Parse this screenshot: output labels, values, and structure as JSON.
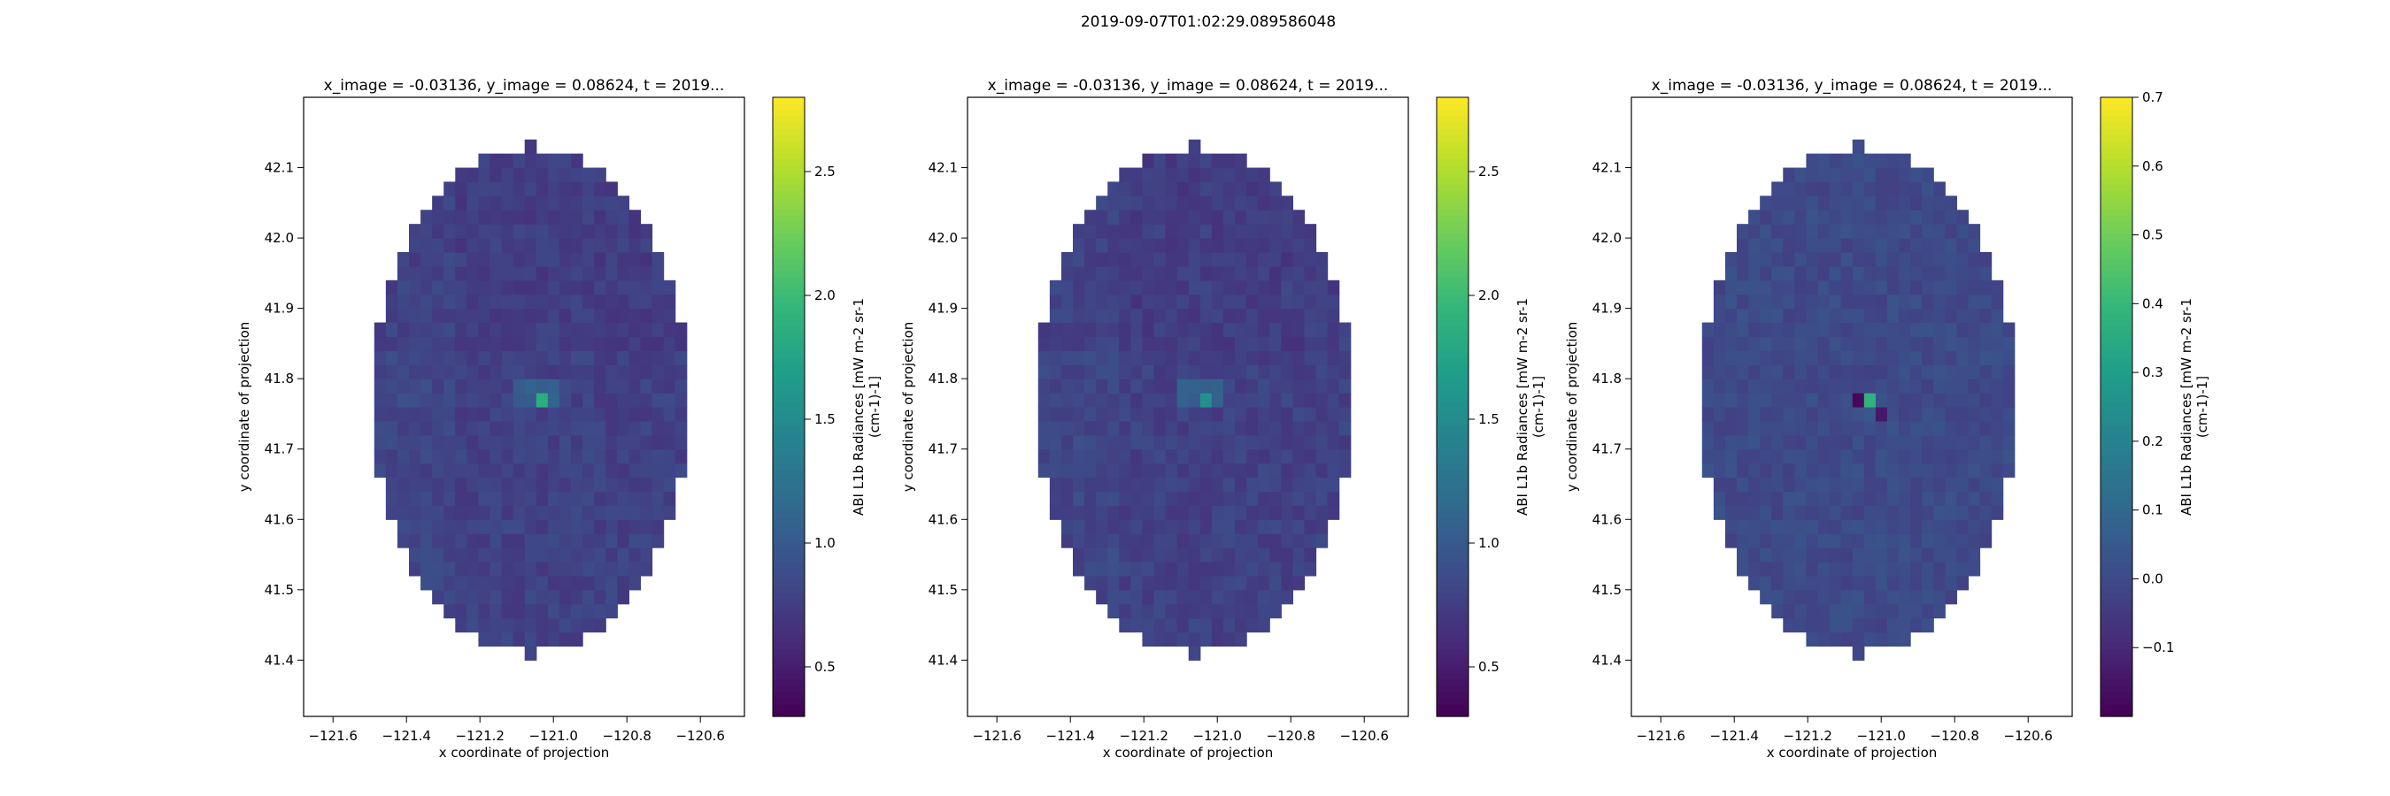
{
  "figure": {
    "suptitle": "2019-09-07T01:02:29.089586048"
  },
  "chart_data": [
    {
      "type": "heatmap",
      "title": "x_image = -0.03136, y_image = 0.08624, t = 2019...",
      "xlabel": "x coordinate of projection",
      "ylabel": "y coordinate of projection",
      "xlim": [
        -121.68,
        -120.48
      ],
      "ylim": [
        41.32,
        42.2
      ],
      "xticks": [
        -121.6,
        -121.4,
        -121.2,
        -121.0,
        -120.8,
        -120.6
      ],
      "xtick_labels": [
        "−121.6",
        "−121.4",
        "−121.2",
        "−121.0",
        "−120.8",
        "−120.6"
      ],
      "yticks": [
        41.4,
        41.5,
        41.6,
        41.7,
        41.8,
        41.9,
        42.0,
        42.1
      ],
      "ytick_labels": [
        "41.4",
        "41.5",
        "41.6",
        "41.7",
        "41.8",
        "41.9",
        "42.0",
        "42.1"
      ],
      "colorbar": {
        "label_lines": [
          "ABI L1b Radiances [mW m-2 sr-1",
          "(cm-1)-1]"
        ],
        "vmin": 0.3,
        "vmax": 2.8,
        "ticks": [
          0.5,
          1.0,
          1.5,
          2.0,
          2.5
        ],
        "tick_labels": [
          "0.5",
          "1.0",
          "1.5",
          "2.0",
          "2.5"
        ],
        "colormap": "viridis"
      },
      "base_value": 0.78,
      "hot_value": 1.85,
      "warm_value": 1.05
    },
    {
      "type": "heatmap",
      "title": "x_image = -0.03136, y_image = 0.08624, t = 2019...",
      "xlabel": "x coordinate of projection",
      "ylabel": "y coordinate of projection",
      "xlim": [
        -121.68,
        -120.48
      ],
      "ylim": [
        41.32,
        42.2
      ],
      "xticks": [
        -121.6,
        -121.4,
        -121.2,
        -121.0,
        -120.8,
        -120.6
      ],
      "xtick_labels": [
        "−121.6",
        "−121.4",
        "−121.2",
        "−121.0",
        "−120.8",
        "−120.6"
      ],
      "yticks": [
        41.4,
        41.5,
        41.6,
        41.7,
        41.8,
        41.9,
        42.0,
        42.1
      ],
      "ytick_labels": [
        "41.4",
        "41.5",
        "41.6",
        "41.7",
        "41.8",
        "41.9",
        "42.0",
        "42.1"
      ],
      "colorbar": {
        "label_lines": [
          "ABI L1b Radiances [mW m-2 sr-1",
          "(cm-1)-1]"
        ],
        "vmin": 0.3,
        "vmax": 2.8,
        "ticks": [
          0.5,
          1.0,
          1.5,
          2.0,
          2.5
        ],
        "tick_labels": [
          "0.5",
          "1.0",
          "1.5",
          "2.0",
          "2.5"
        ],
        "colormap": "viridis"
      },
      "base_value": 0.78,
      "hot_value": 1.55,
      "warm_value": 1.05
    },
    {
      "type": "heatmap",
      "title": "x_image = -0.03136, y_image = 0.08624, t = 2019...",
      "xlabel": "x coordinate of projection",
      "ylabel": "y coordinate of projection",
      "xlim": [
        -121.68,
        -120.48
      ],
      "ylim": [
        41.32,
        42.2
      ],
      "xticks": [
        -121.6,
        -121.4,
        -121.2,
        -121.0,
        -120.8,
        -120.6
      ],
      "xtick_labels": [
        "−121.6",
        "−121.4",
        "−121.2",
        "−121.0",
        "−120.8",
        "−120.6"
      ],
      "yticks": [
        41.4,
        41.5,
        41.6,
        41.7,
        41.8,
        41.9,
        42.0,
        42.1
      ],
      "ytick_labels": [
        "41.4",
        "41.5",
        "41.6",
        "41.7",
        "41.8",
        "41.9",
        "42.0",
        "42.1"
      ],
      "colorbar": {
        "label_lines": [
          "ABI L1b Radiances [mW m-2 sr-1",
          "(cm-1)-1]"
        ],
        "vmin": -0.2,
        "vmax": 0.7,
        "ticks": [
          -0.1,
          0.0,
          0.1,
          0.2,
          0.3,
          0.4,
          0.5,
          0.6,
          0.7
        ],
        "tick_labels": [
          "−0.1",
          "0.0",
          "0.1",
          "0.2",
          "0.3",
          "0.4",
          "0.5",
          "0.6",
          "0.7"
        ],
        "colormap": "viridis"
      },
      "base_value": 0.0,
      "hot_value": 0.38,
      "warm_value": 0.05,
      "cold_value": -0.18
    }
  ]
}
